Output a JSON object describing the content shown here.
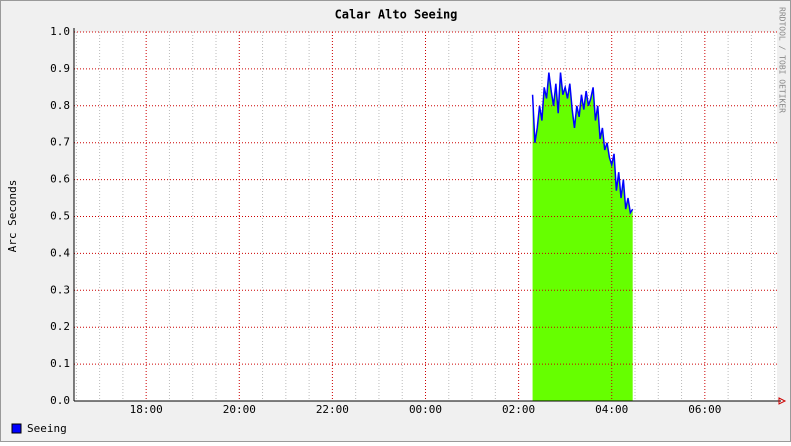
{
  "chart_data": {
    "type": "area",
    "title": "Calar Alto Seeing",
    "y_label": "Arc Seconds",
    "watermark": "RRDTOOL / TOBI OETIKER",
    "xlim": [
      16.45,
      31.55
    ],
    "xticks": [
      {
        "value": 18,
        "label": "18:00"
      },
      {
        "value": 20,
        "label": "20:00"
      },
      {
        "value": 22,
        "label": "22:00"
      },
      {
        "value": 24,
        "label": "00:00"
      },
      {
        "value": 26,
        "label": "02:00"
      },
      {
        "value": 28,
        "label": "04:00"
      },
      {
        "value": 30,
        "label": "06:00"
      }
    ],
    "x_minor_ticks": [
      16.5,
      17,
      17.5,
      18.5,
      19,
      19.5,
      20.5,
      21,
      21.5,
      22.5,
      23,
      23.5,
      24.5,
      25,
      25.5,
      26.5,
      27,
      27.5,
      28.5,
      29,
      29.5,
      30.5,
      31,
      31.5
    ],
    "ylim": [
      0,
      1
    ],
    "yticks": [
      {
        "value": 0,
        "label": "0.0"
      },
      0.1,
      0.2,
      0.3,
      0.4,
      0.5,
      0.6,
      0.7,
      0.8,
      0.9,
      {
        "value": 1,
        "label": "1.0"
      }
    ],
    "grid": true,
    "x": [
      26.3,
      26.35,
      26.4,
      26.45,
      26.5,
      26.55,
      26.6,
      26.65,
      26.7,
      26.75,
      26.8,
      26.85,
      26.9,
      26.95,
      27.0,
      27.05,
      27.1,
      27.15,
      27.2,
      27.25,
      27.3,
      27.35,
      27.4,
      27.45,
      27.5,
      27.55,
      27.6,
      27.65,
      27.7,
      27.75,
      27.8,
      27.85,
      27.9,
      27.95,
      28.0,
      28.05,
      28.1,
      28.15,
      28.2,
      28.25,
      28.3,
      28.35,
      28.4,
      28.45
    ],
    "series": [
      {
        "name": "Seeing",
        "color": "#0000ff",
        "area_color": "#66ff00",
        "values": [
          0.83,
          0.7,
          0.74,
          0.8,
          0.76,
          0.85,
          0.82,
          0.89,
          0.84,
          0.8,
          0.86,
          0.78,
          0.89,
          0.83,
          0.85,
          0.82,
          0.86,
          0.79,
          0.74,
          0.8,
          0.77,
          0.83,
          0.79,
          0.84,
          0.8,
          0.82,
          0.85,
          0.76,
          0.8,
          0.71,
          0.74,
          0.68,
          0.7,
          0.66,
          0.64,
          0.67,
          0.57,
          0.62,
          0.55,
          0.6,
          0.52,
          0.55,
          0.51,
          0.52
        ]
      }
    ]
  }
}
